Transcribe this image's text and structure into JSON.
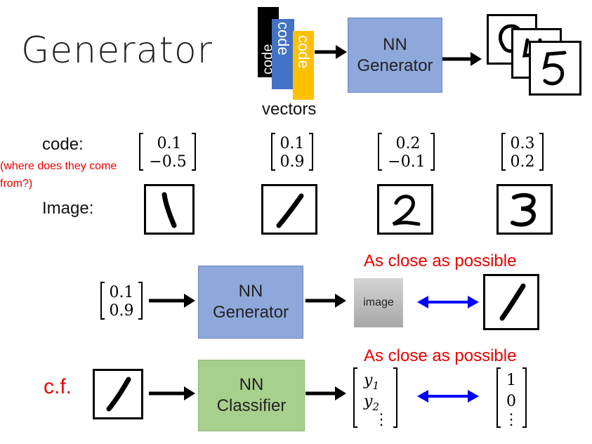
{
  "title": "Generator",
  "top": {
    "code_labels": [
      "code",
      "code",
      "code"
    ],
    "vectors_label": "vectors",
    "generator_line1": "NN",
    "generator_line2": "Generator"
  },
  "row_labels": {
    "code": "code:",
    "question": "(where does they come from?)",
    "image": "Image:"
  },
  "codes": [
    {
      "a": "0.1",
      "b": "−0.5"
    },
    {
      "a": "0.1",
      "b": "0.9"
    },
    {
      "a": "0.2",
      "b": "−0.1"
    },
    {
      "a": "0.3",
      "b": "0.2"
    }
  ],
  "middle": {
    "input": {
      "a": "0.1",
      "b": "0.9"
    },
    "generator_line1": "NN",
    "generator_line2": "Generator",
    "image_label": "image",
    "close_label": "As close as possible"
  },
  "bottom": {
    "cf_label": "c.f.",
    "classifier_line1": "NN",
    "classifier_line2": "Classifier",
    "close_label": "As close as possible",
    "output": {
      "a": "y",
      "a_sub": "1",
      "b": "y",
      "b_sub": "2",
      "c": "⋮"
    },
    "target": {
      "a": "1",
      "b": "0",
      "c": "⋮"
    }
  },
  "colors": {
    "generator": "#8EA8DB",
    "classifier": "#A8D08D",
    "emphasis": "#e00000",
    "double_arrow": "#0000ff"
  }
}
